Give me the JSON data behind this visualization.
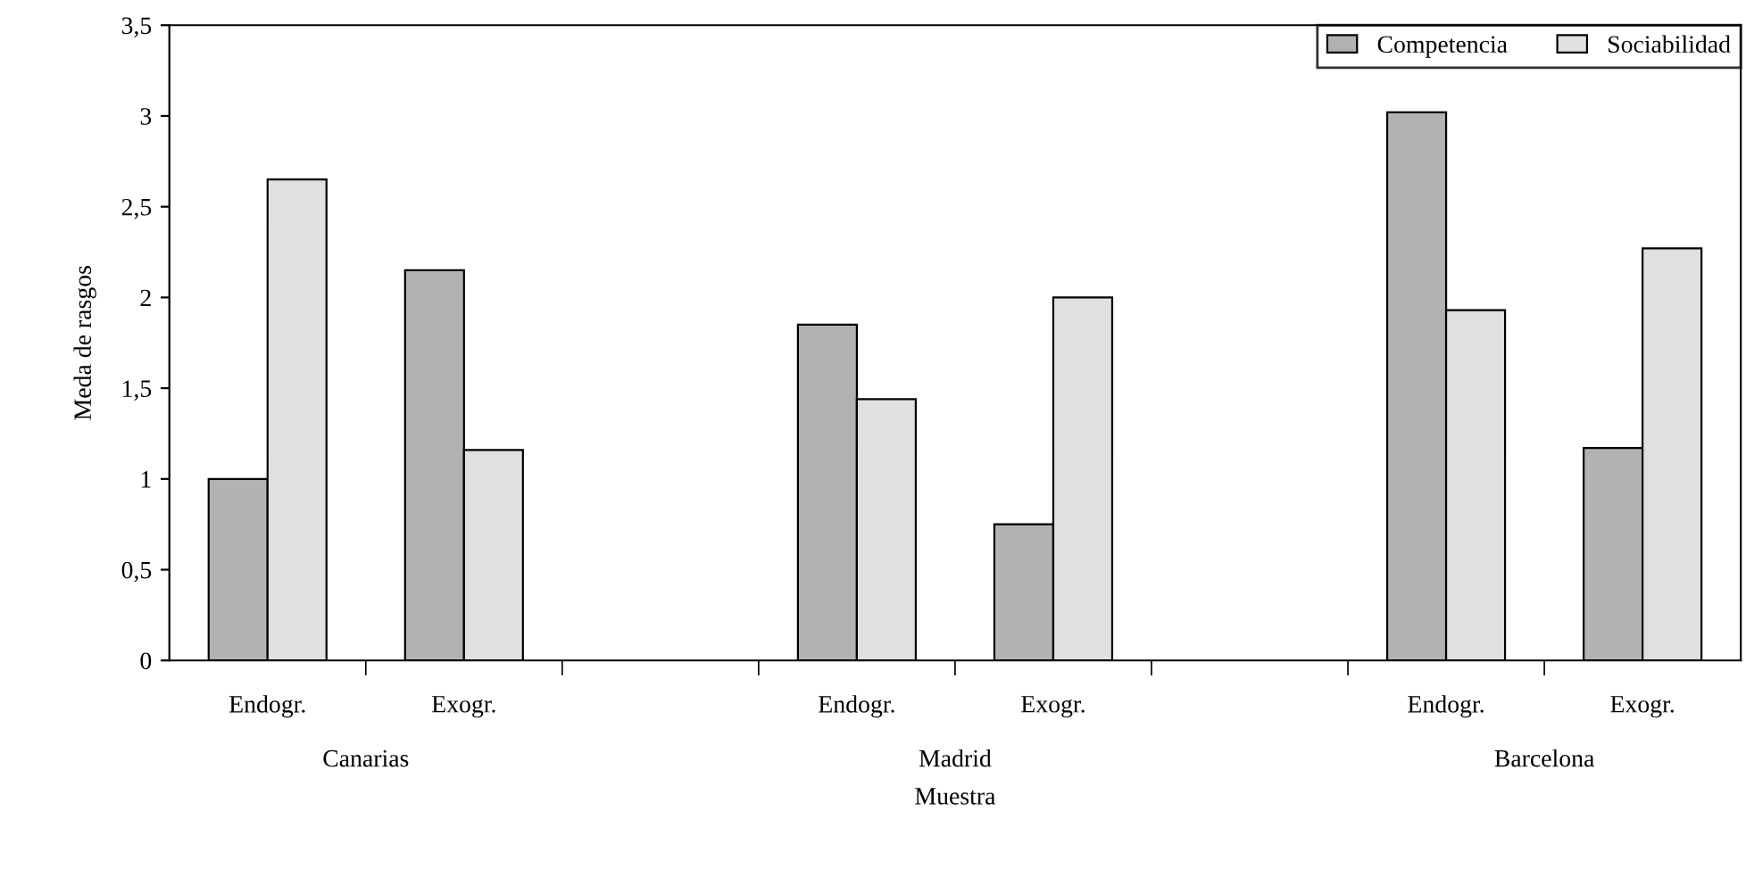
{
  "chart_data": {
    "type": "bar",
    "xlabel": "Muestra",
    "ylabel": "Meda de rasgos",
    "categories": [
      "Endogr.",
      "Exogr.",
      null,
      "Endogr.",
      "Exogr.",
      null,
      "Endogr.",
      "Exogr."
    ],
    "series": [
      {
        "name": "Competencia",
        "color": "#b2b2b2",
        "values": [
          1.0,
          2.15,
          null,
          1.85,
          0.75,
          null,
          3.02,
          1.17
        ]
      },
      {
        "name": "Sociabilidad",
        "color": "#e0e0e0",
        "values": [
          2.65,
          1.16,
          null,
          1.44,
          2.0,
          null,
          1.93,
          2.27
        ]
      }
    ],
    "annotations": [
      "Canarias",
      "Madrid",
      "Barcelona"
    ],
    "ylim": [
      0,
      3.5
    ],
    "yticks": [
      0,
      {
        "value": 0.5,
        "label": "0,5"
      },
      1,
      {
        "value": 1.5,
        "label": "1,5"
      },
      2,
      {
        "value": 2.5,
        "label": "2,5"
      },
      3,
      {
        "value": 3.5,
        "label": "3,5"
      }
    ],
    "grid": false,
    "legend": "top right"
  }
}
